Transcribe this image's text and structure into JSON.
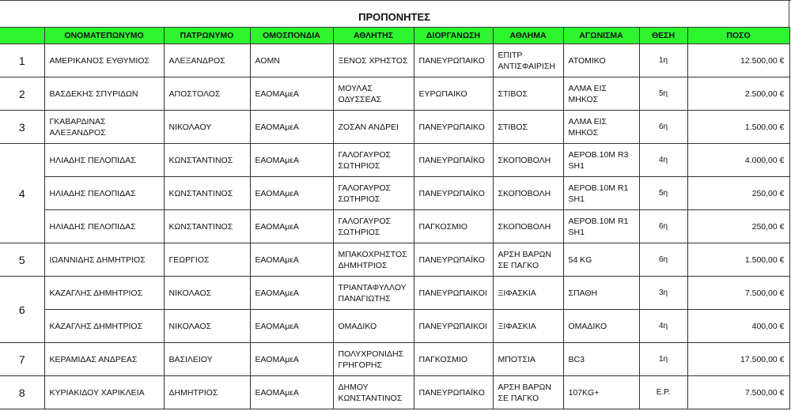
{
  "title": "ΠΡΟΠΟΝΗΤΕΣ",
  "colors": {
    "header_bg": "#2ef52e"
  },
  "columns": [
    "",
    "ΟΝΟΜΑΤΕΠΩΝΥΜΟ",
    "ΠΑΤΡΩΝΥΜΟ",
    "ΟΜΟΣΠΟΝΔΙΑ",
    "ΑΘΛΗΤΗΣ",
    "ΔΙΟΡΓΑΝΩΣΗ",
    "ΑΘΛΗΜΑ",
    "ΑΓΩΝΙΣΜΑ",
    "ΘΕΣΗ",
    "ΠΟΣΟ"
  ],
  "groups": [
    {
      "index": "1",
      "rows": [
        [
          "ΑΜΕΡΙΚΑΝΟΣ ΕΥΘΥΜΙΟΣ",
          "ΑΛΕΞΑΝΔΡΟΣ",
          "ΑΟΜΝ",
          "ΞΕΝΟΣ ΧΡΗΣΤΟΣ",
          "ΠΑΝΕΥΡΩΠΑΙΚΟ",
          "ΕΠΙΤΡ ΑΝΤΙΣΦΑΙΡΙΣΗ",
          "ΑΤΟΜΙΚΟ",
          "1η",
          "12.500,00 €"
        ]
      ]
    },
    {
      "index": "2",
      "rows": [
        [
          "ΒΑΣΔΕΚΗΣ ΣΠΥΡΙΔΩΝ",
          "ΑΠΟΣΤΟΛΟΣ",
          "ΕΑΟΜΑμεΑ",
          "ΜΟΥΛΑΣ ΟΔΥΣΣΕΑΣ",
          "ΕΥΡΩΠΑΙΚΟ",
          "ΣΤΙΒΟΣ",
          "ΑΛΜΑ ΕΙΣ ΜΗΚΟΣ",
          "5η",
          "2.500,00 €"
        ]
      ]
    },
    {
      "index": "3",
      "rows": [
        [
          "ΓΚΑΒΑΡΔΙΝΑΣ ΑΛΕΞΑΝΔΡΟΣ",
          "ΝΙΚΟΛΑΟΥ",
          "ΕΑΟΜΑμεΑ",
          "ΖΟΣΑΝ ΑΝΔΡΕΙ",
          "ΠΑΝΕΥΡΩΠΑΙΚΟ",
          "ΣΤΙΒΟΣ",
          "ΑΛΜΑ ΕΙΣ ΜΗΚΟΣ",
          "6η",
          "1.500,00 €"
        ]
      ]
    },
    {
      "index": "4",
      "rows": [
        [
          "ΗΛΙΑΔΗΣ ΠΕΛΟΠΙΔΑΣ",
          "ΚΩΝΣΤΑΝΤΙΝΟΣ",
          "ΕΑΟΜΑμεΑ",
          "ΓΑΛΟΓΑΥΡΟΣ ΣΩΤΗΡΙΟΣ",
          "ΠΑΝΕΥΡΩΠΑΪΚΟ",
          "ΣΚΟΠΟΒΟΛΗ",
          "ΑΕΡΟΒ.10Μ R3 SH1",
          "4η",
          "4.000,00 €"
        ],
        [
          "ΗΛΙΑΔΗΣ ΠΕΛΟΠΙΔΑΣ",
          "ΚΩΝΣΤΑΝΤΙΝΟΣ",
          "ΕΑΟΜΑμεΑ",
          "ΓΑΛΟΓΑΥΡΟΣ ΣΩΤΗΡΙΟΣ",
          "ΠΑΝΕΥΡΩΠΑΪΚΟ",
          "ΣΚΟΠΟΒΟΛΗ",
          "ΑΕΡΟΒ.10Μ R1 SH1",
          "5η",
          "250,00 €"
        ],
        [
          "ΗΛΙΑΔΗΣ ΠΕΛΟΠΙΔΑΣ",
          "ΚΩΝΣΤΑΝΤΙΝΟΣ",
          "ΕΑΟΜΑμεΑ",
          "ΓΑΛΟΓΑΥΡΟΣ ΣΩΤΗΡΙΟΣ",
          "ΠΑΓΚΟΣΜΙΟ",
          "ΣΚΟΠΟΒΟΛΗ",
          "ΑΕΡΟΒ.10Μ R1 SH1",
          "6η",
          "250,00 €"
        ]
      ]
    },
    {
      "index": "5",
      "rows": [
        [
          "ΙΩΑΝΝΙΔΗΣ ΔΗΜΗΤΡΙΟΣ",
          "ΓΕΩΡΓΙΟΣ",
          "ΕΑΟΜΑμεΑ",
          "ΜΠΑΚΟΧΡΗΣΤΟΣ ΔΗΜΗΤΡΙΟΣ",
          "ΠΑΝΕΥΡΩΠΑΪΚΟ",
          "ΑΡΣΗ ΒΑΡΩΝ ΣΕ ΠΑΓΚΟ",
          "54 KG",
          "6η",
          "1.500,00 €"
        ]
      ]
    },
    {
      "index": "6",
      "rows": [
        [
          "ΚΑΖΑΓΛΗΣ ΔΗΜΗΤΡΙΟΣ",
          "ΝΙΚΟΛΑΟΣ",
          "ΕΑΟΜΑμεΑ",
          "ΤΡΙΑΝΤΑΦΥΛΛΟΥ ΠΑΝΑΓΙΩΤΗΣ",
          "ΠΑΝΕΥΡΩΠΑΙΚΟΙ",
          "ΞΙΦΑΣΚΙΑ",
          "ΣΠΑΘΗ",
          "3η",
          "7.500,00 €"
        ],
        [
          "ΚΑΖΑΓΛΗΣ ΔΗΜΗΤΡΙΟΣ",
          "ΝΙΚΟΛΑΟΣ",
          "ΕΑΟΜΑμεΑ",
          "ΟΜΑΔΙΚΟ",
          "ΠΑΝΕΥΡΩΠΑΙΚΟΙ",
          "ΞΙΦΑΣΚΙΑ",
          "ΟΜΑΔΙΚΟ",
          "4η",
          "400,00 €"
        ]
      ]
    },
    {
      "index": "7",
      "rows": [
        [
          "ΚΕΡΑΜΙΔΑΣ ΑΝΔΡΕΑΣ",
          "ΒΑΣΙΛΕΙΟΥ",
          "ΕΑΟΜΑμεΑ",
          "ΠΟΛΥΧΡΟΝΙΔΗΣ ΓΡΗΓΟΡΗΣ",
          "ΠΑΓΚΟΣΜΙΟ",
          "ΜΠΟΤΣΙΑ",
          "BC3",
          "1η",
          "17.500,00 €"
        ]
      ]
    },
    {
      "index": "8",
      "rows": [
        [
          "ΚΥΡΙΑΚΙΔΟΥ ΧΑΡΙΚΛΕΙΑ",
          "ΔΗΜΗΤΡΙΟΣ",
          "ΕΑΟΜΑμεΑ",
          "ΔΗΜΟΥ ΚΩΝΣΤΑΝΤΙΝΟΣ",
          "ΠΑΝΕΥΡΩΠΑΪΚΟ",
          "ΑΡΣΗ ΒΑΡΩΝ ΣΕ ΠΑΓΚΟ",
          "107KG+",
          "Ε.Ρ.",
          "7.500,00 €"
        ]
      ]
    }
  ]
}
